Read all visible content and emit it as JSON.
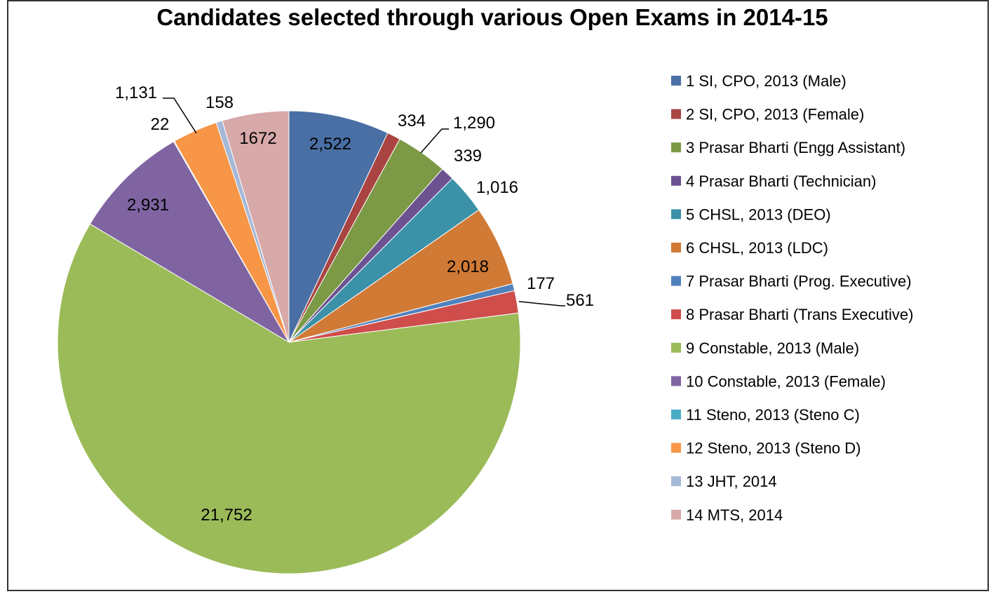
{
  "chart_data": {
    "type": "pie",
    "title": "Candidates selected through various Open Exams in 2014-15",
    "legend_position": "right",
    "start_angle": "12 o'clock, clockwise",
    "slices": [
      {
        "label": "1 SI, CPO, 2013 (Male)",
        "value": 2522,
        "display": "2,522",
        "color": "#4A6FA5"
      },
      {
        "label": "2 SI, CPO, 2013 (Female)",
        "value": 334,
        "display": "334",
        "color": "#A94442"
      },
      {
        "label": "3 Prasar Bharti (Engg Assistant)",
        "value": 1290,
        "display": "1,290",
        "color": "#7C9A45"
      },
      {
        "label": "4 Prasar Bharti (Technician)",
        "value": 339,
        "display": "339",
        "color": "#6C5291"
      },
      {
        "label": "5 CHSL, 2013 (DEO)",
        "value": 1016,
        "display": "1,016",
        "color": "#3A91A8"
      },
      {
        "label": "6 CHSL, 2013 (LDC)",
        "value": 2018,
        "display": "2,018",
        "color": "#D07A36"
      },
      {
        "label": "7 Prasar Bharti (Prog. Executive)",
        "value": 177,
        "display": "177",
        "color": "#4F81BD"
      },
      {
        "label": "8 Prasar Bharti (Trans Executive)",
        "value": 561,
        "display": "561",
        "color": "#CF4D4B"
      },
      {
        "label": "9 Constable, 2013 (Male)",
        "value": 21752,
        "display": "21,752",
        "color": "#9BBB59"
      },
      {
        "label": "10 Constable, 2013 (Female)",
        "value": 2931,
        "display": "2,931",
        "color": "#8064A2"
      },
      {
        "label": "11 Steno, 2013 (Steno C)",
        "value": 22,
        "display": "22",
        "color": "#4BACC6"
      },
      {
        "label": "12 Steno, 2013 (Steno D)",
        "value": 1131,
        "display": "1,131",
        "color": "#F79646"
      },
      {
        "label": "13 JHT, 2014",
        "value": 158,
        "display": "158",
        "color": "#A5B8D8"
      },
      {
        "label": "14 MTS, 2014",
        "value": 1672,
        "display": "1672",
        "color": "#D8A9A9"
      }
    ]
  }
}
